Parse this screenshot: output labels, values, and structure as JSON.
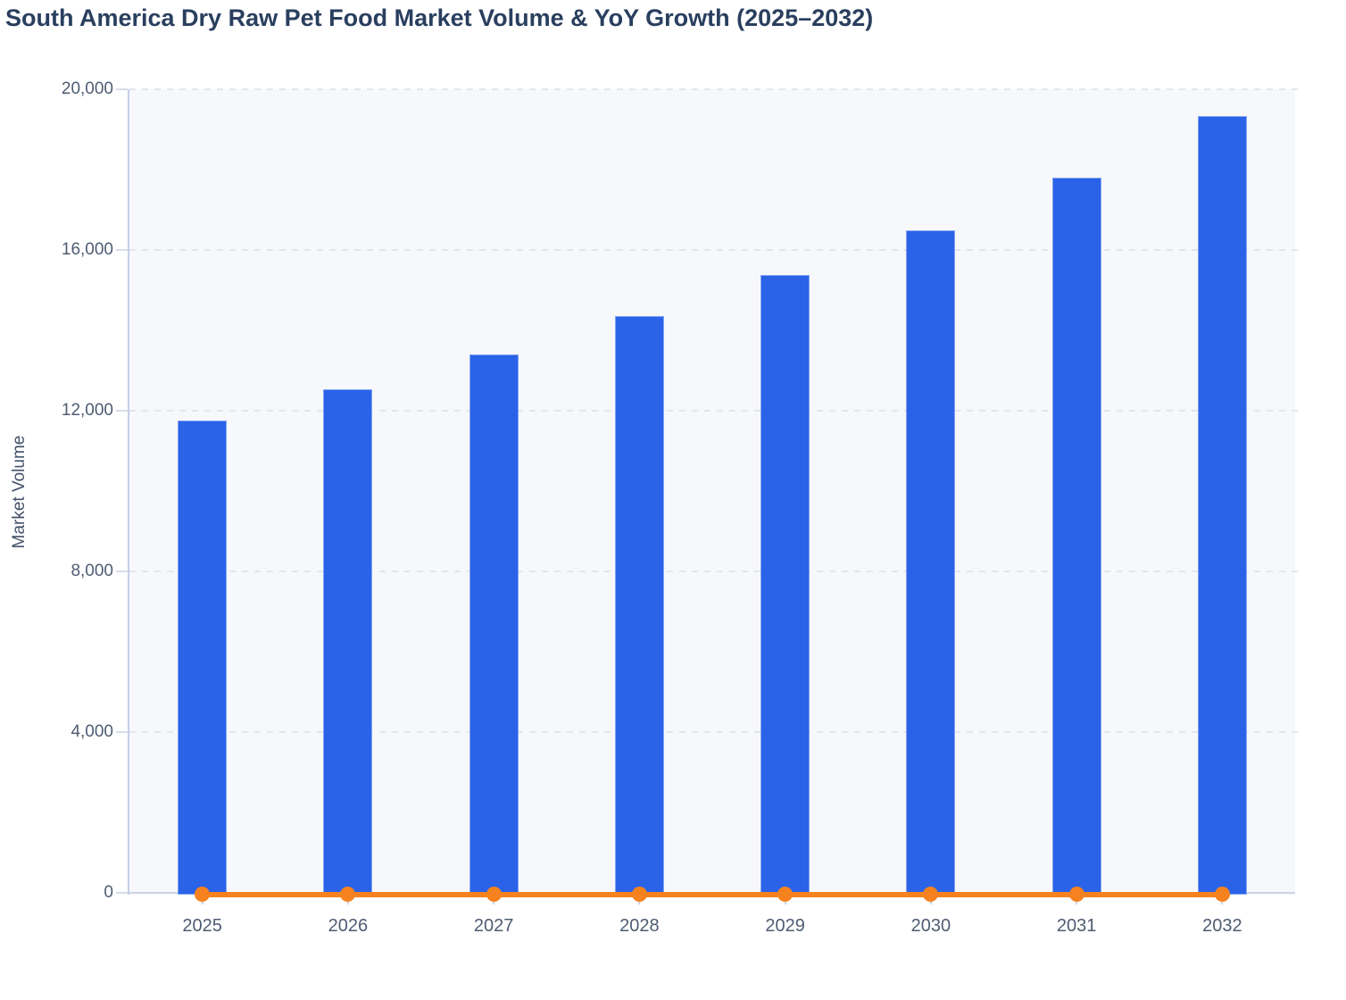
{
  "page": {
    "background": "#ffffff"
  },
  "chart_data": {
    "type": "bar",
    "title": "South America Dry Raw Pet Food Market Volume & YoY Growth (2025–2032)",
    "categories": [
      "2025",
      "2026",
      "2027",
      "2028",
      "2029",
      "2030",
      "2031",
      "2032"
    ],
    "series": [
      {
        "name": "Market Volume",
        "type": "bar",
        "color": "#2a63e8",
        "values": [
          11800,
          12580,
          13440,
          14390,
          15430,
          16540,
          17850,
          19370
        ]
      },
      {
        "name": "YoY Growth",
        "type": "line",
        "color": "#f5821f",
        "values": [
          0,
          0,
          0,
          0,
          0,
          0,
          0,
          0
        ]
      }
    ],
    "xlabel": "",
    "ylabel": "Market Volume",
    "ylim": [
      0,
      20000
    ],
    "yticks": {
      "values": [
        0,
        4000,
        8000,
        12000,
        16000,
        20000
      ],
      "labels": [
        "0",
        "4,000",
        "8,000",
        "12,000",
        "16,000",
        "20,000"
      ]
    },
    "legend": "none",
    "grid": "horizontal-dashed",
    "layout_hints": {
      "plot_background": "#f7f8fb",
      "axis_line_color": "#c5cee9",
      "baseline_color": "#cdd4e4",
      "grid_color": "#e4e6ed",
      "title_color": "#2a3f5f",
      "tick_text_color": "#4e5c72",
      "line_on_baseline": "YoY Growth line renders flat along the zero baseline with a marker at each year; no secondary axis labels are shown"
    }
  }
}
